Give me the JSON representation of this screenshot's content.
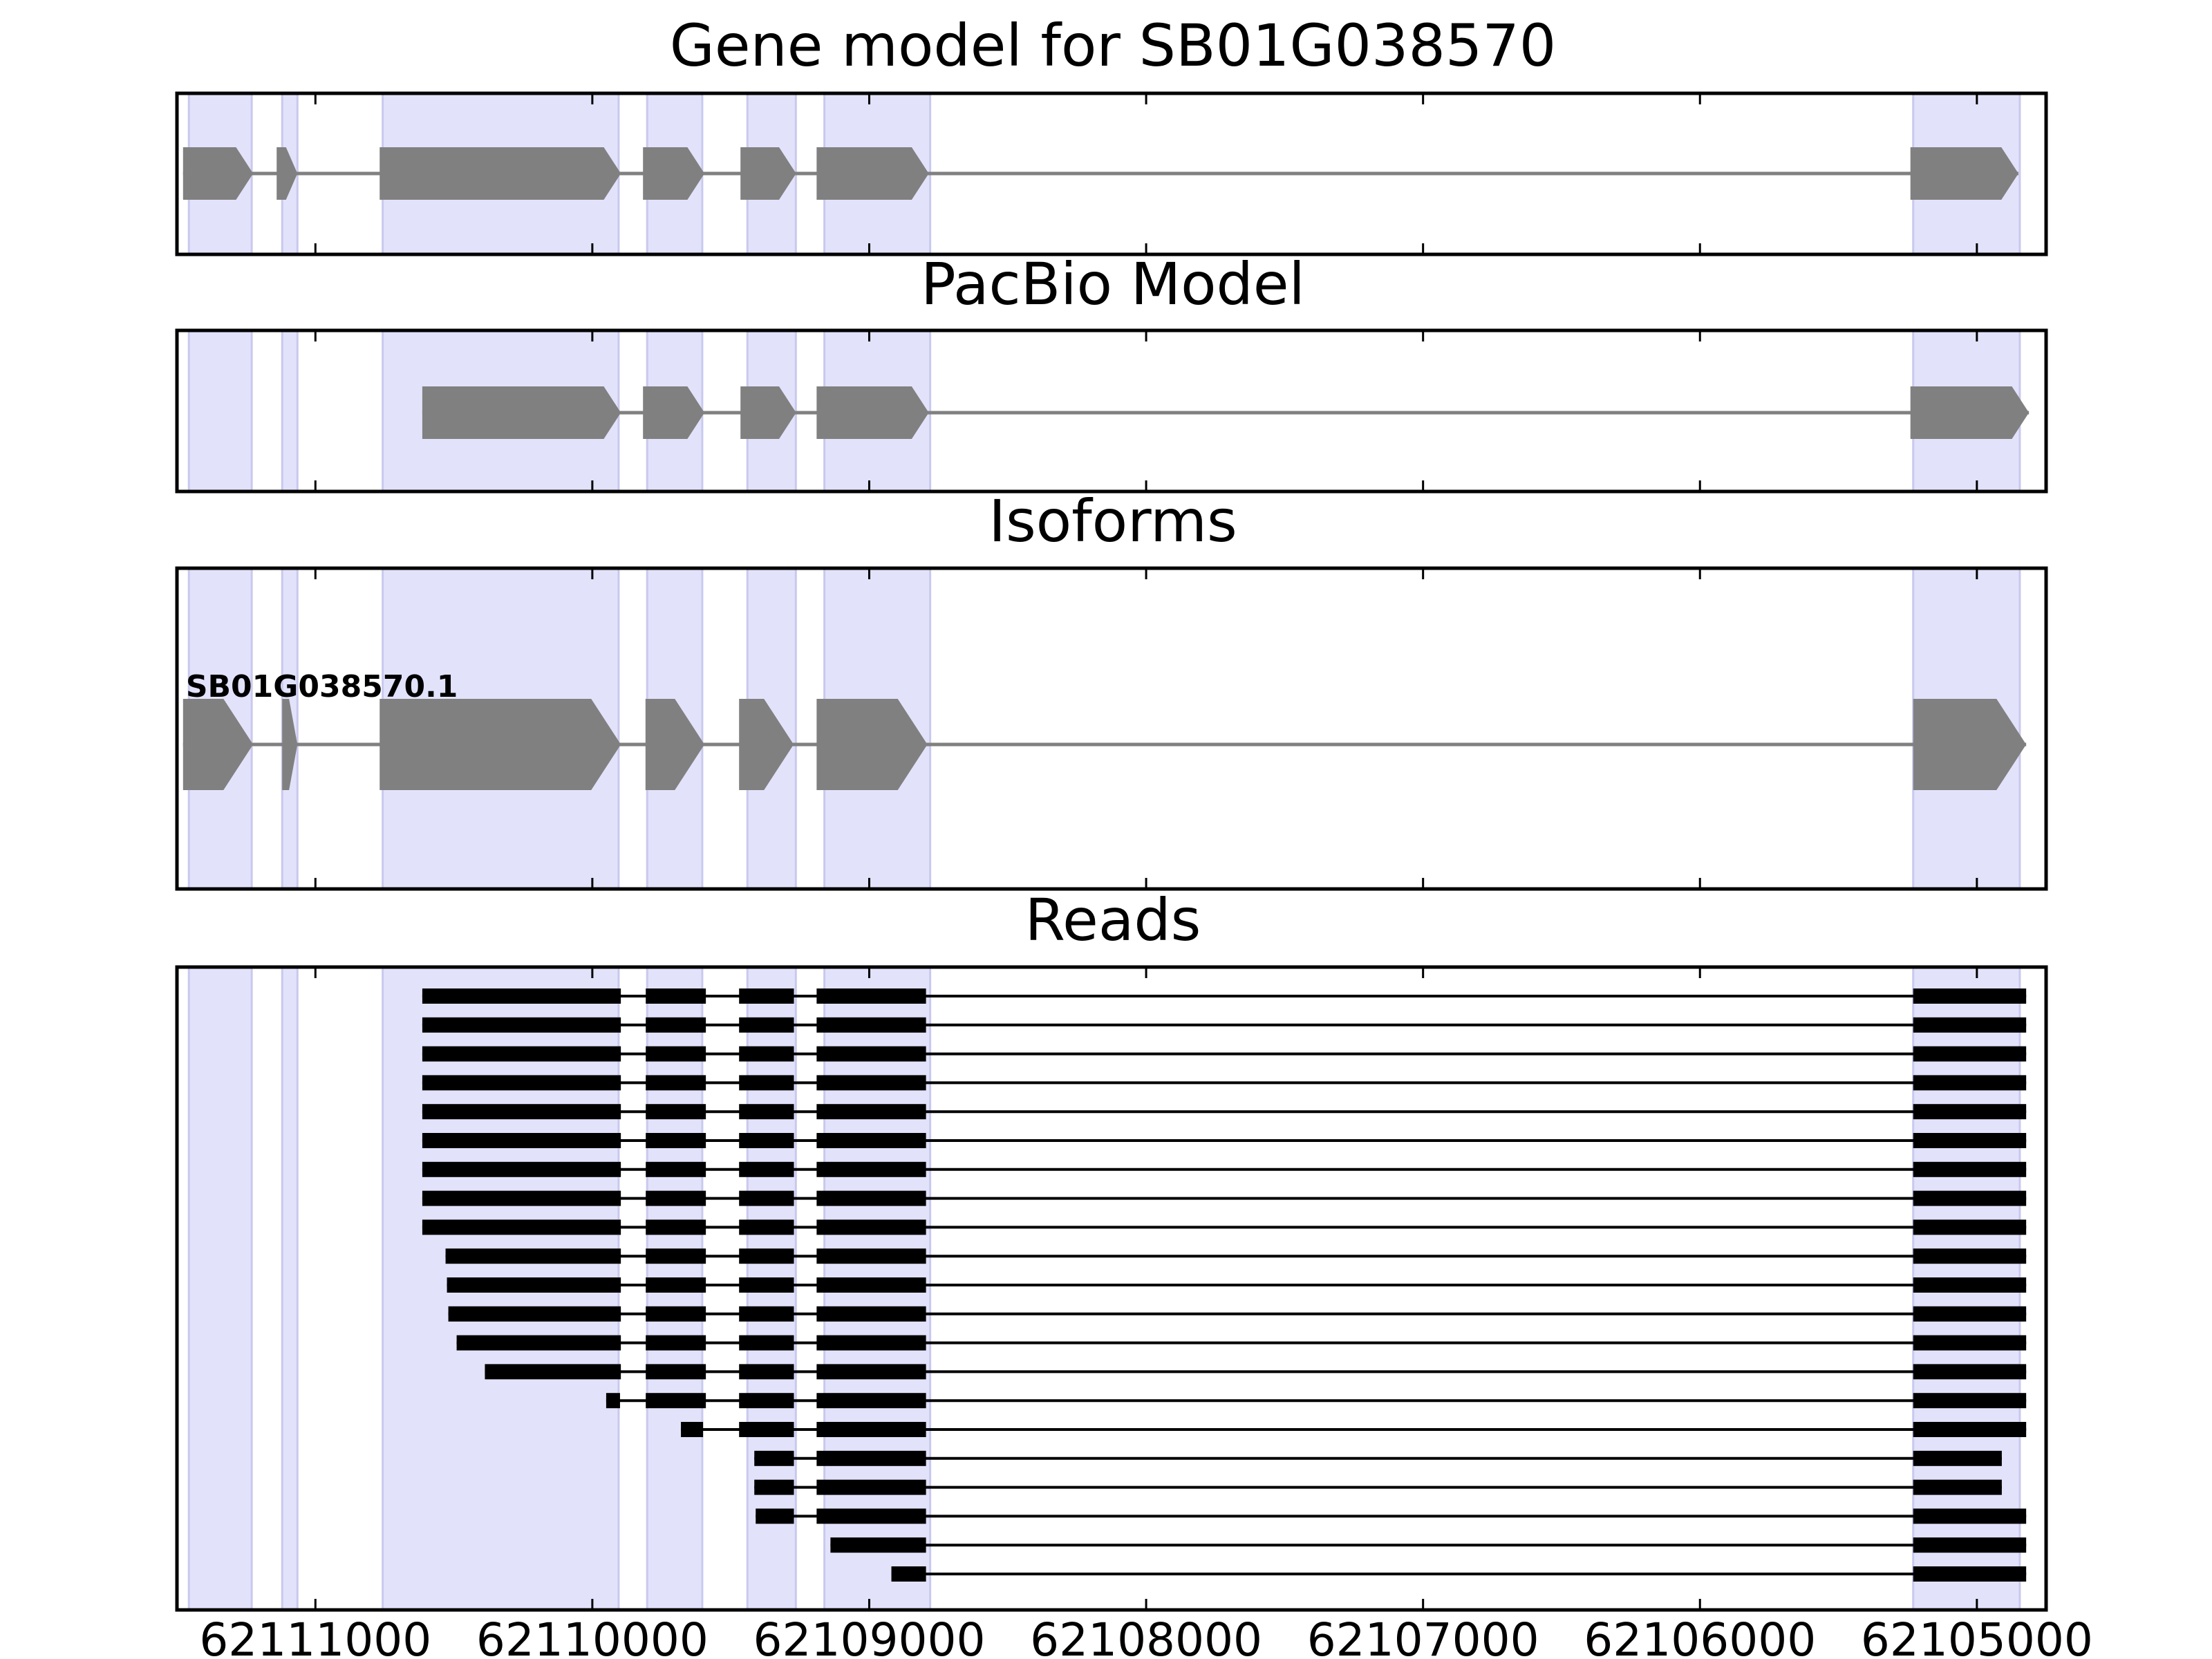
{
  "figure": {
    "panels": [
      {
        "id": "gene-model",
        "title": "Gene model for SB01G038570"
      },
      {
        "id": "pacbio-model",
        "title": "PacBio Model"
      },
      {
        "id": "isoforms",
        "title": "Isoforms"
      },
      {
        "id": "reads",
        "title": "Reads"
      }
    ]
  },
  "colors": {
    "exon_fill": "#808080",
    "exon_shade": "#e2e2fb",
    "shade_edge": "#c9c9ee",
    "read": "#000000",
    "frame": "#000000"
  },
  "chart_data": {
    "type": "gene-track",
    "x_axis": {
      "xlim": [
        62111500,
        62104750
      ],
      "reversed": true,
      "ticks": [
        62111000,
        62110000,
        62109000,
        62108000,
        62107000,
        62106000,
        62105000
      ],
      "tick_labels": [
        "62111000",
        "62110000",
        "62109000",
        "62108000",
        "62107000",
        "62106000",
        "62105000"
      ]
    },
    "shaded_exon_regions": [
      [
        62111457,
        62111230
      ],
      [
        62111120,
        62111065
      ],
      [
        62110757,
        62109905
      ],
      [
        62109802,
        62109603
      ],
      [
        62109440,
        62109265
      ],
      [
        62109162,
        62108780
      ],
      [
        62105230,
        62104845
      ]
    ],
    "gene_model": {
      "span": [
        62111478,
        62104850
      ],
      "exons": [
        {
          "start": 62111478,
          "end": 62111225
        },
        {
          "start": 62111140,
          "end": 62111065
        },
        {
          "start": 62110768,
          "end": 62109897
        },
        {
          "start": 62109817,
          "end": 62109595
        },
        {
          "start": 62109465,
          "end": 62109264
        },
        {
          "start": 62109190,
          "end": 62108785
        },
        {
          "start": 62105240,
          "end": 62104850
        }
      ]
    },
    "pacbio_model": {
      "span": [
        62110614,
        62104812
      ],
      "exons": [
        {
          "start": 62110614,
          "end": 62109897
        },
        {
          "start": 62109817,
          "end": 62109595
        },
        {
          "start": 62109465,
          "end": 62109264
        },
        {
          "start": 62109190,
          "end": 62108785
        },
        {
          "start": 62105240,
          "end": 62104812
        }
      ]
    },
    "isoforms": [
      {
        "name": "SB01G038570.1",
        "span": [
          62111478,
          62104822
        ],
        "exons": [
          {
            "start": 62111478,
            "end": 62111225
          },
          {
            "start": 62111120,
            "end": 62111065
          },
          {
            "start": 62110768,
            "end": 62109897
          },
          {
            "start": 62109808,
            "end": 62109595
          },
          {
            "start": 62109470,
            "end": 62109273
          },
          {
            "start": 62109190,
            "end": 62108790
          },
          {
            "start": 62105230,
            "end": 62104822
          }
        ]
      }
    ],
    "reads": [
      {
        "exons": [
          [
            62110614,
            62109897
          ],
          [
            62109807,
            62109590
          ],
          [
            62109470,
            62109272
          ],
          [
            62109190,
            62108795
          ],
          [
            62105230,
            62104822
          ]
        ]
      },
      {
        "exons": [
          [
            62110614,
            62109897
          ],
          [
            62109807,
            62109590
          ],
          [
            62109470,
            62109272
          ],
          [
            62109190,
            62108795
          ],
          [
            62105230,
            62104822
          ]
        ]
      },
      {
        "exons": [
          [
            62110614,
            62109897
          ],
          [
            62109807,
            62109590
          ],
          [
            62109470,
            62109272
          ],
          [
            62109190,
            62108795
          ],
          [
            62105230,
            62104822
          ]
        ]
      },
      {
        "exons": [
          [
            62110614,
            62109897
          ],
          [
            62109807,
            62109590
          ],
          [
            62109470,
            62109272
          ],
          [
            62109190,
            62108795
          ],
          [
            62105230,
            62104822
          ]
        ]
      },
      {
        "exons": [
          [
            62110614,
            62109897
          ],
          [
            62109807,
            62109590
          ],
          [
            62109470,
            62109272
          ],
          [
            62109190,
            62108795
          ],
          [
            62105230,
            62104822
          ]
        ]
      },
      {
        "exons": [
          [
            62110614,
            62109897
          ],
          [
            62109807,
            62109590
          ],
          [
            62109470,
            62109272
          ],
          [
            62109190,
            62108795
          ],
          [
            62105230,
            62104822
          ]
        ]
      },
      {
        "exons": [
          [
            62110614,
            62109897
          ],
          [
            62109807,
            62109590
          ],
          [
            62109470,
            62109272
          ],
          [
            62109190,
            62108795
          ],
          [
            62105230,
            62104822
          ]
        ]
      },
      {
        "exons": [
          [
            62110614,
            62109897
          ],
          [
            62109807,
            62109590
          ],
          [
            62109470,
            62109272
          ],
          [
            62109190,
            62108795
          ],
          [
            62105230,
            62104822
          ]
        ]
      },
      {
        "exons": [
          [
            62110614,
            62109897
          ],
          [
            62109807,
            62109590
          ],
          [
            62109470,
            62109272
          ],
          [
            62109190,
            62108795
          ],
          [
            62105230,
            62104822
          ]
        ]
      },
      {
        "exons": [
          [
            62110530,
            62109897
          ],
          [
            62109807,
            62109590
          ],
          [
            62109470,
            62109272
          ],
          [
            62109190,
            62108795
          ],
          [
            62105230,
            62104822
          ]
        ]
      },
      {
        "exons": [
          [
            62110525,
            62109897
          ],
          [
            62109807,
            62109590
          ],
          [
            62109470,
            62109272
          ],
          [
            62109190,
            62108795
          ],
          [
            62105230,
            62104822
          ]
        ]
      },
      {
        "exons": [
          [
            62110520,
            62109897
          ],
          [
            62109807,
            62109590
          ],
          [
            62109470,
            62109272
          ],
          [
            62109190,
            62108795
          ],
          [
            62105230,
            62104822
          ]
        ]
      },
      {
        "exons": [
          [
            62110490,
            62109897
          ],
          [
            62109807,
            62109590
          ],
          [
            62109470,
            62109272
          ],
          [
            62109190,
            62108795
          ],
          [
            62105230,
            62104822
          ]
        ]
      },
      {
        "exons": [
          [
            62110388,
            62109897
          ],
          [
            62109807,
            62109590
          ],
          [
            62109470,
            62109272
          ],
          [
            62109190,
            62108795
          ],
          [
            62105230,
            62104822
          ]
        ]
      },
      {
        "exons": [
          [
            62109950,
            62109900
          ],
          [
            62109807,
            62109590
          ],
          [
            62109470,
            62109272
          ],
          [
            62109190,
            62108795
          ],
          [
            62105230,
            62104822
          ]
        ]
      },
      {
        "exons": [
          [
            62109680,
            62109600
          ],
          [
            62109470,
            62109272
          ],
          [
            62109190,
            62108795
          ],
          [
            62105230,
            62104822
          ]
        ]
      },
      {
        "exons": [
          [
            62109415,
            62109272
          ],
          [
            62109190,
            62108795
          ],
          [
            62105230,
            62104910
          ]
        ]
      },
      {
        "exons": [
          [
            62109415,
            62109272
          ],
          [
            62109190,
            62108795
          ],
          [
            62105230,
            62104910
          ]
        ]
      },
      {
        "exons": [
          [
            62109410,
            62109272
          ],
          [
            62109190,
            62108795
          ],
          [
            62105230,
            62104822
          ]
        ]
      },
      {
        "exons": [
          [
            62109140,
            62108795
          ],
          [
            62105230,
            62104822
          ]
        ]
      },
      {
        "exons": [
          [
            62108920,
            62108795
          ],
          [
            62105230,
            62104822
          ]
        ]
      }
    ]
  }
}
